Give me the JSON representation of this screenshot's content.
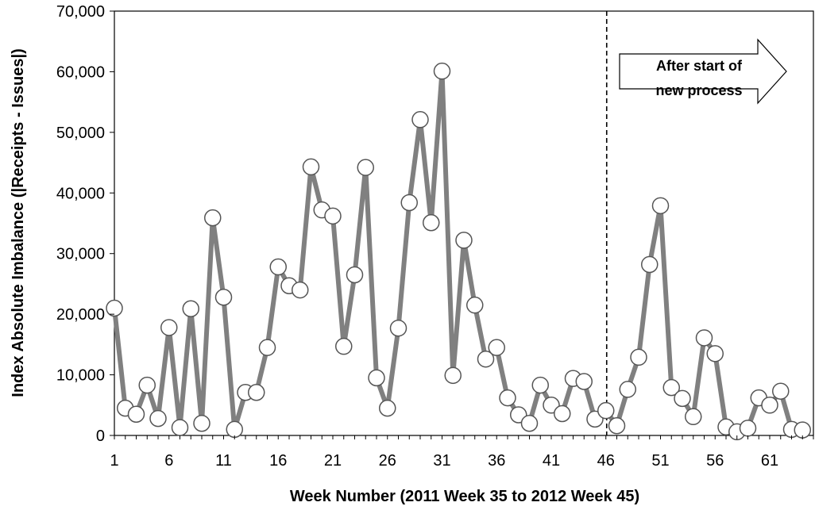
{
  "chart_data": {
    "type": "line",
    "xlabel": "Week Number (2011 Week 35 to 2012 Week 45)",
    "ylabel": "Index Absolute Imbalance (|Receipts - Issues|)",
    "xlim": [
      1,
      65
    ],
    "ylim": [
      0,
      70000
    ],
    "x_ticks": [
      1,
      6,
      11,
      16,
      21,
      26,
      31,
      36,
      41,
      46,
      51,
      56,
      61
    ],
    "y_ticks": [
      0,
      10000,
      20000,
      30000,
      40000,
      50000,
      60000,
      70000
    ],
    "x_tick_labels": [
      "1",
      "6",
      "11",
      "16",
      "21",
      "26",
      "31",
      "36",
      "41",
      "46",
      "51",
      "56",
      "61"
    ],
    "y_tick_labels": [
      "0",
      "10,000",
      "20,000",
      "30,000",
      "40,000",
      "50,000",
      "60,000",
      "70,000"
    ],
    "grid": false,
    "legend": "none",
    "series": [
      {
        "x": [
          1,
          2,
          3,
          4,
          5,
          6,
          7,
          8,
          9,
          10,
          11,
          12,
          13,
          14,
          15,
          16,
          17,
          18,
          19,
          20,
          21,
          22,
          23,
          24,
          25,
          26,
          27,
          28,
          29,
          30,
          31,
          32,
          33,
          34,
          35,
          36,
          37,
          38,
          39,
          40,
          41,
          42,
          43,
          44,
          45,
          46,
          47,
          48,
          49,
          50,
          51,
          52,
          53,
          54,
          55,
          56,
          57,
          58,
          59,
          60,
          61,
          62,
          63,
          64
        ],
        "values": [
          21000,
          4500,
          3500,
          8300,
          2800,
          17800,
          1300,
          20900,
          2000,
          35900,
          22800,
          1000,
          7100,
          7100,
          14500,
          27800,
          24700,
          24000,
          44300,
          37200,
          36200,
          14700,
          26500,
          44200,
          9500,
          4500,
          17700,
          38400,
          52100,
          35100,
          60100,
          9900,
          32200,
          21500,
          12600,
          14500,
          6200,
          3400,
          2000,
          8300,
          5000,
          3600,
          9400,
          8900,
          2700,
          4100,
          1600,
          7600,
          12900,
          28200,
          37900,
          7900,
          6100,
          3100,
          16100,
          13500,
          1400,
          600,
          1200,
          6200,
          5000,
          7300,
          1000,
          900
        ],
        "color": "#808080"
      }
    ],
    "divider_x": 46,
    "annotation": {
      "line1": "After start of",
      "line2": "new process"
    }
  }
}
